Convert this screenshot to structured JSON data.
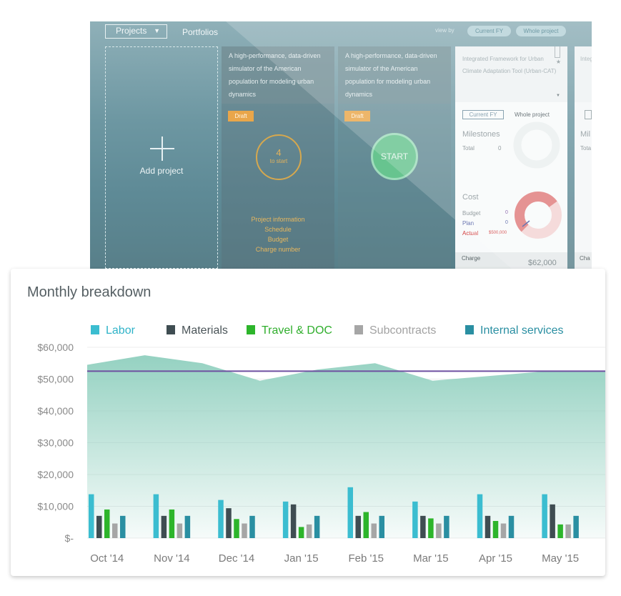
{
  "app": {
    "projects_label": "Projects",
    "caret": "▼",
    "portfolios_label": "Portfolios",
    "view_by_label": "view by",
    "view_by_options": [
      "Current FY",
      "Whole project"
    ],
    "add_project_label": "Add project",
    "cards": [
      {
        "description": "A high-performance, data-driven simulator of the American population for modeling urban dynamics",
        "status": "Draft",
        "progress_count": "4",
        "progress_label": "to start",
        "links": [
          "Project information",
          "Schedule",
          "Budget",
          "Charge number"
        ]
      },
      {
        "description": "A high-performance, data-driven simulator of the American population for modeling urban dynamics",
        "status": "Draft",
        "start_label": "START"
      }
    ],
    "detail_panel": {
      "title": "Integrated Framework for Urban Climate Adaptation Tool (Urban-CAT)",
      "star": "★",
      "dropdown": "▼",
      "tabs": [
        "Current FY",
        "Whole project"
      ],
      "milestones_label": "Milestones",
      "milestones_total_label": "Total",
      "milestones_total_value": "0",
      "cost_label": "Cost",
      "budget_label": "Budget",
      "budget_value": "0",
      "plan_label": "Plan",
      "plan_value": "0",
      "actual_label": "Actual",
      "actual_value": "$500,000",
      "charge_label": "Charge",
      "charge_amount": "$62,000",
      "cost_gauge_fraction": 0.7
    },
    "detail_panel_2": {
      "title_fragment": "Integ Urb Too",
      "milestones_fragment": "Mil",
      "total_fragment": "Tota",
      "charge_fragment": "Cha"
    }
  },
  "monthly": {
    "title": "Monthly breakdown",
    "colors": {
      "Labor": "#3bbdd0",
      "Materials": "#3f4d52",
      "Travel & DOC": "#2db52b",
      "Subcontracts": "#a6a6a6",
      "Internal services": "#2a8fa2",
      "area": "#8fcfbe",
      "budget_line": "#6e4fa0"
    },
    "legend_text_colors": [
      "#2fb3c8",
      "#4a5458",
      "#2fae2c",
      "#a2a2a2",
      "#2a8fa2"
    ]
  },
  "chart_data": {
    "type": "bar",
    "categories": [
      "Oct '14",
      "Nov '14",
      "Dec '14",
      "Jan '15",
      "Feb '15",
      "Mar '15",
      "Apr '15",
      "May '15"
    ],
    "series": [
      {
        "name": "Labor",
        "values": [
          13800,
          13800,
          12000,
          11500,
          16000,
          11500,
          13800,
          13800
        ]
      },
      {
        "name": "Materials",
        "values": [
          7000,
          7000,
          9400,
          10600,
          7000,
          7000,
          7000,
          10600
        ]
      },
      {
        "name": "Travel & DOC",
        "values": [
          9000,
          9000,
          6000,
          3500,
          8200,
          6200,
          5400,
          4300
        ]
      },
      {
        "name": "Subcontracts",
        "values": [
          4600,
          4600,
          4600,
          4300,
          4600,
          4600,
          4600,
          4300
        ]
      },
      {
        "name": "Internal services",
        "values": [
          7000,
          7000,
          7000,
          7000,
          7000,
          7000,
          7000,
          7000
        ]
      }
    ],
    "area_total": [
      54500,
      57500,
      55000,
      49500,
      53000,
      55000,
      49500,
      51000,
      52500,
      52500
    ],
    "budget_line": 52500,
    "yticks": [
      "$60,000",
      "$50,000",
      "$40,000",
      "$30,000",
      "$20,000",
      "$10,000",
      "$-"
    ],
    "ylim": [
      0,
      60000
    ],
    "grid": true,
    "legend_position": "top"
  }
}
